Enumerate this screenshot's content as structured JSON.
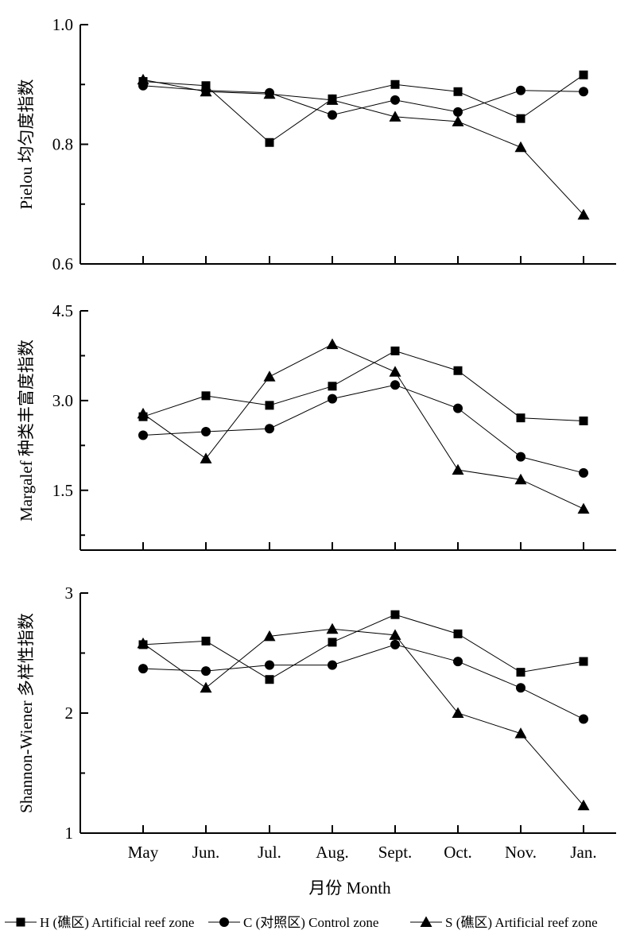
{
  "chart_data": {
    "type": "line",
    "categories": [
      "May",
      "Jun.",
      "Jul.",
      "Aug.",
      "Sept.",
      "Oct.",
      "Nov.",
      "Jan."
    ],
    "xlabel": "月份 Month",
    "legend": {
      "placement": "bottom",
      "entries": [
        {
          "key": "H",
          "label": "H (礁区)  Artificial reef zone",
          "marker": "square"
        },
        {
          "key": "C",
          "label": "C (对照区)  Control zone",
          "marker": "circle"
        },
        {
          "key": "S",
          "label": "S (礁区)  Artificial reef zone",
          "marker": "triangle"
        }
      ]
    },
    "panels": [
      {
        "ylabel": "Pielou 均匀度指数",
        "ylim": [
          0.6,
          1.0
        ],
        "yticks": [
          "0.6",
          "0.8",
          "1.0"
        ],
        "ytick_values": [
          0.6,
          0.8,
          1.0
        ],
        "yminor": [
          0.7,
          0.9
        ],
        "series": [
          {
            "key": "H",
            "values": [
              0.905,
              0.898,
              0.803,
              0.876,
              0.9,
              0.888,
              0.843,
              0.916
            ]
          },
          {
            "key": "C",
            "values": [
              0.898,
              0.89,
              0.886,
              0.849,
              0.874,
              0.854,
              0.89,
              0.888
            ]
          },
          {
            "key": "S",
            "values": [
              0.908,
              0.888,
              0.884,
              0.874,
              0.846,
              0.838,
              0.795,
              0.682
            ]
          }
        ]
      },
      {
        "ylabel": "Margalef 种类丰富度指数",
        "ylim": [
          0.5,
          4.5
        ],
        "yticks": [
          "1.5",
          "3.0",
          "4.5"
        ],
        "ytick_values": [
          1.5,
          3.0,
          4.5
        ],
        "yminor": [
          0.75,
          2.25,
          3.75
        ],
        "series": [
          {
            "key": "H",
            "values": [
              2.73,
              3.08,
              2.92,
              3.24,
              3.83,
              3.5,
              2.71,
              2.66
            ]
          },
          {
            "key": "C",
            "values": [
              2.42,
              2.48,
              2.53,
              3.03,
              3.26,
              2.87,
              2.06,
              1.79
            ]
          },
          {
            "key": "S",
            "values": [
              2.78,
              2.03,
              3.4,
              3.94,
              3.48,
              1.84,
              1.68,
              1.19
            ]
          }
        ]
      },
      {
        "ylabel": "Shannon-Wiener 多样性指数",
        "ylim": [
          1,
          3
        ],
        "yticks": [
          "1",
          "2",
          "3"
        ],
        "ytick_values": [
          1,
          2,
          3
        ],
        "yminor": [
          1.5,
          2.5
        ],
        "series": [
          {
            "key": "H",
            "values": [
              2.57,
              2.6,
              2.28,
              2.59,
              2.82,
              2.66,
              2.34,
              2.43
            ]
          },
          {
            "key": "C",
            "values": [
              2.37,
              2.35,
              2.4,
              2.4,
              2.57,
              2.43,
              2.21,
              1.95
            ]
          },
          {
            "key": "S",
            "values": [
              2.58,
              2.21,
              2.64,
              2.7,
              2.65,
              2.0,
              1.83,
              1.23
            ]
          }
        ]
      }
    ]
  }
}
